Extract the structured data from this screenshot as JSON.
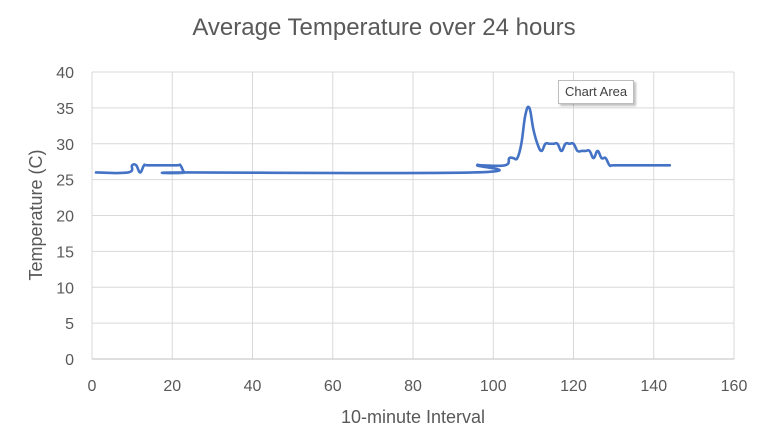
{
  "chart_data": {
    "type": "line",
    "title": "Average Temperature over 24 hours",
    "xlabel": "10-minute Interval",
    "ylabel": "Temperature (C)",
    "xlim": [
      0,
      160
    ],
    "ylim": [
      0,
      40
    ],
    "x_ticks": [
      0,
      20,
      40,
      60,
      80,
      100,
      120,
      140,
      160
    ],
    "y_ticks": [
      0,
      5,
      10,
      15,
      20,
      25,
      30,
      35,
      40
    ],
    "grid": true,
    "legend": "none",
    "color": "#4472c4",
    "series": [
      {
        "x": [
          1,
          9,
          10,
          11,
          12,
          13,
          14,
          21,
          22,
          23,
          24,
          95,
          96,
          97,
          103,
          104,
          105,
          106,
          107,
          108,
          109,
          110,
          111,
          112,
          113,
          114,
          115,
          116,
          117,
          118,
          119,
          120,
          121,
          122,
          123,
          124,
          125,
          126,
          127,
          128,
          129,
          130,
          135,
          144
        ],
        "y": [
          26,
          26,
          27,
          27,
          26,
          27,
          27,
          27,
          27,
          26,
          26,
          26,
          27,
          27,
          27,
          28,
          28,
          28,
          30,
          34,
          35,
          32,
          30,
          29,
          30,
          30,
          30,
          30,
          29,
          30,
          30,
          30,
          29,
          29,
          29,
          29,
          28,
          29,
          28,
          28,
          27,
          27,
          27,
          27
        ]
      }
    ]
  },
  "tooltip": {
    "label": "Chart Area"
  }
}
